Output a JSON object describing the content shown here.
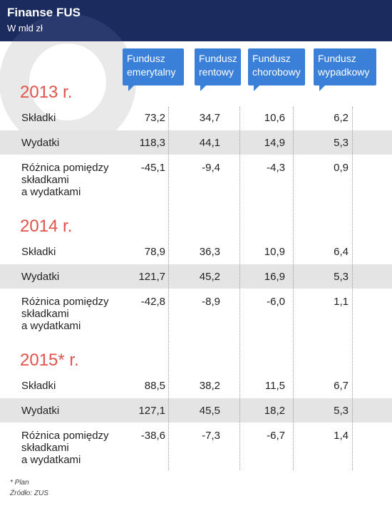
{
  "header": {
    "title": "Finanse FUS",
    "subtitle": "W mld zł"
  },
  "columns": [
    "Fundusz emerytalny",
    "Fundusz rentowy",
    "Fundusz chorobowy",
    "Fundusz wypadkowy"
  ],
  "sections": [
    {
      "year": "2013 r.",
      "rows": [
        {
          "label_lines": [
            "Składki"
          ],
          "values": [
            "73,2",
            "34,7",
            "10,6",
            "6,2"
          ]
        },
        {
          "label_lines": [
            "Wydatki"
          ],
          "values": [
            "118,3",
            "44,1",
            "14,9",
            "5,3"
          ]
        },
        {
          "label_lines": [
            "Różnica pomiędzy",
            "składkami",
            "a wydatkami"
          ],
          "values": [
            "-45,1",
            "-9,4",
            "-4,3",
            "0,9"
          ]
        }
      ]
    },
    {
      "year": "2014 r.",
      "rows": [
        {
          "label_lines": [
            "Składki"
          ],
          "values": [
            "78,9",
            "36,3",
            "10,9",
            "6,4"
          ]
        },
        {
          "label_lines": [
            "Wydatki"
          ],
          "values": [
            "121,7",
            "45,2",
            "16,9",
            "5,3"
          ]
        },
        {
          "label_lines": [
            "Różnica pomiędzy",
            "składkami",
            "a wydatkami"
          ],
          "values": [
            "-42,8",
            "-8,9",
            "-6,0",
            "1,1"
          ]
        }
      ]
    },
    {
      "year": "2015* r.",
      "rows": [
        {
          "label_lines": [
            "Składki"
          ],
          "values": [
            "88,5",
            "38,2",
            "11,5",
            "6,7"
          ]
        },
        {
          "label_lines": [
            "Wydatki"
          ],
          "values": [
            "127,1",
            "45,5",
            "18,2",
            "5,3"
          ]
        },
        {
          "label_lines": [
            "Różnica pomiędzy",
            "składkami",
            "a wydatkami"
          ],
          "values": [
            "-38,6",
            "-7,3",
            "-6,7",
            "1,4"
          ]
        }
      ]
    }
  ],
  "footnotes": [
    "* Plan",
    "Źródło: ZUS"
  ]
}
